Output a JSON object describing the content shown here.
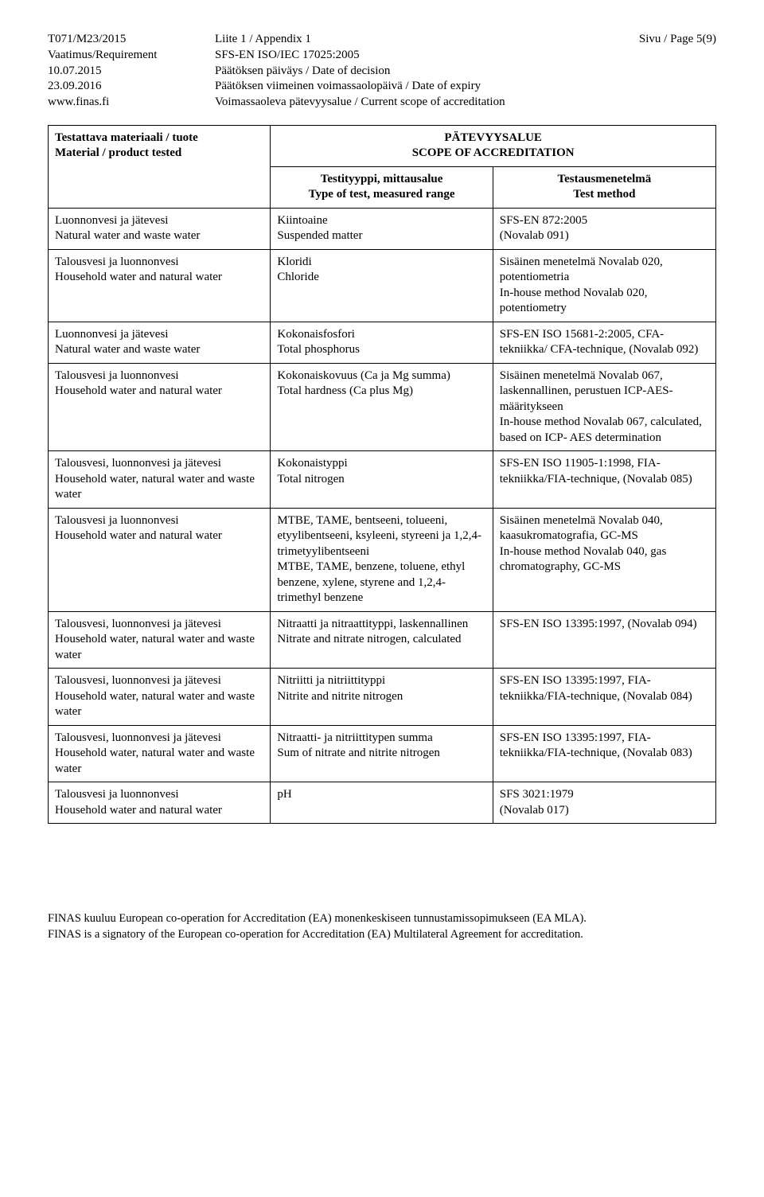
{
  "header": {
    "left": {
      "code": "T071/M23/2015",
      "req_label": "Vaatimus/Requirement",
      "date1": "10.07.2015",
      "date2": "23.09.2016",
      "site": "www.finas.fi"
    },
    "mid": {
      "appendix": "Liite 1 / Appendix 1",
      "standard": "SFS-EN ISO/IEC 17025:2005",
      "decision": "Päätöksen päiväys / Date of decision",
      "expiry": "Päätöksen viimeinen voimassaolopäivä / Date of expiry",
      "scope": "Voimassaoleva pätevyysalue / Current scope of accreditation"
    },
    "right": {
      "page": "Sivu / Page 5(9)"
    }
  },
  "table": {
    "super_header": {
      "l1": "PÄTEVYYSALUE",
      "l2": "SCOPE OF ACCREDITATION"
    },
    "cols": {
      "c1a": "Testattava materiaali / tuote",
      "c1b": "Material / product tested",
      "c2a": "Testityyppi, mittausalue",
      "c2b": "Type of test, measured range",
      "c3a": "Testausmenetelmä",
      "c3b": "Test method"
    },
    "rows": [
      {
        "c1": "Luonnonvesi ja jätevesi\nNatural water and waste water",
        "c2": "Kiintoaine\nSuspended matter",
        "c3": "SFS-EN 872:2005\n(Novalab 091)"
      },
      {
        "c1": "Talousvesi ja luonnonvesi\nHousehold water and natural water",
        "c2": "Kloridi\nChloride",
        "c3": "Sisäinen menetelmä Novalab 020, potentiometria\nIn-house method Novalab 020, potentiometry"
      },
      {
        "c1": "Luonnonvesi ja jätevesi\nNatural water and waste water",
        "c2": "Kokonaisfosfori\nTotal phosphorus",
        "c3": "SFS-EN ISO 15681-2:2005, CFA-tekniikka/ CFA-technique, (Novalab 092)"
      },
      {
        "c1": "Talousvesi ja luonnonvesi\nHousehold water and natural water",
        "c2": "Kokonaiskovuus (Ca ja Mg summa)\nTotal hardness (Ca plus Mg)",
        "c3": "Sisäinen menetelmä Novalab 067, laskennallinen, perustuen ICP-AES-määritykseen\nIn-house method Novalab 067, calculated, based on ICP- AES determination"
      },
      {
        "c1": "Talousvesi, luonnonvesi ja jätevesi\nHousehold water, natural water and waste water",
        "c2": "Kokonaistyppi\nTotal nitrogen",
        "c3": "SFS-EN ISO 11905-1:1998, FIA-tekniikka/FIA-technique, (Novalab 085)"
      },
      {
        "c1": "Talousvesi ja luonnonvesi\nHousehold water and natural water",
        "c2": "MTBE, TAME, bentseeni, tolueeni, etyylibentseeni, ksyleeni, styreeni ja 1,2,4-trimetyylibentseeni\nMTBE, TAME, benzene, toluene, ethyl benzene, xylene, styrene and 1,2,4-trimethyl benzene",
        "c3": "Sisäinen menetelmä Novalab 040, kaasukromatografia, GC-MS\nIn-house method Novalab 040, gas chromatography, GC-MS"
      },
      {
        "c1": "Talousvesi, luonnonvesi ja jätevesi\nHousehold water, natural water and waste water",
        "c2": "Nitraatti ja nitraattityppi, laskennallinen\nNitrate and nitrate nitrogen, calculated",
        "c3": "SFS-EN ISO 13395:1997, (Novalab 094)"
      },
      {
        "c1": "Talousvesi, luonnonvesi ja jätevesi\nHousehold water, natural water and waste water",
        "c2": "Nitriitti ja nitriittityppi\nNitrite and nitrite nitrogen",
        "c3": "SFS-EN ISO 13395:1997, FIA-tekniikka/FIA-technique, (Novalab 084)"
      },
      {
        "c1": "Talousvesi, luonnonvesi ja jätevesi\nHousehold water, natural water and waste water",
        "c2": "Nitraatti- ja nitriittitypen summa\nSum of nitrate and nitrite nitrogen",
        "c3": "SFS-EN ISO 13395:1997, FIA-tekniikka/FIA-technique, (Novalab 083)"
      },
      {
        "c1": "Talousvesi ja luonnonvesi\nHousehold water and natural water",
        "c2": "pH",
        "c3": "SFS 3021:1979\n(Novalab 017)"
      }
    ]
  },
  "footer": {
    "l1": "FINAS kuuluu European co-operation for Accreditation (EA) monenkeskiseen tunnustamissopimukseen (EA MLA).",
    "l2": "FINAS is a signatory of the European co-operation for Accreditation (EA) Multilateral Agreement for accreditation."
  }
}
